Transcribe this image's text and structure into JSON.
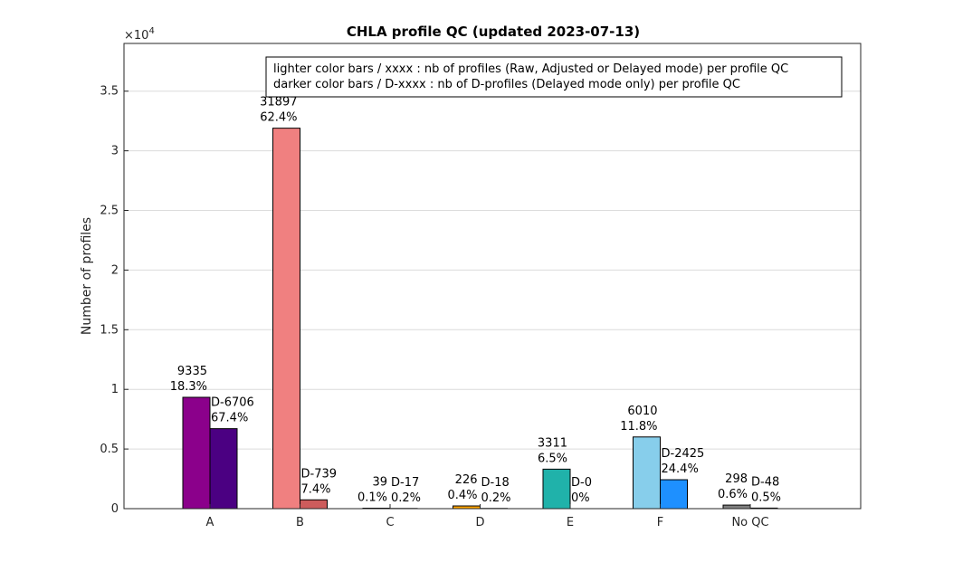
{
  "chart_data": {
    "type": "bar",
    "title": "CHLA profile QC (updated 2023-07-13)",
    "ylabel": "Number of profiles",
    "xlabel": "",
    "exponent_label": "×10",
    "exponent_power": "4",
    "ylim": [
      0,
      39000
    ],
    "yticks": [
      0,
      5000,
      10000,
      15000,
      20000,
      25000,
      30000,
      35000
    ],
    "ytick_labels": [
      "0",
      "0.5",
      "1",
      "1.5",
      "2",
      "2.5",
      "3",
      "3.5"
    ],
    "categories": [
      "A",
      "B",
      "C",
      "D",
      "E",
      "F",
      "No QC"
    ],
    "grid": "horizontal",
    "legend_placement": "top-right",
    "legend_lines": [
      "lighter color bars / xxxx : nb of profiles (Raw, Adjusted or Delayed mode) per profile QC",
      "darker color bars / D-xxxx : nb of D-profiles (Delayed mode only) per profile QC"
    ],
    "series": [
      {
        "values": [
          9335,
          31897,
          39,
          226,
          3311,
          6010,
          298
        ],
        "count_labels": [
          "9335",
          "31897",
          "39",
          "226",
          "3311",
          "6010",
          "298"
        ],
        "pct_labels": [
          "18.3%",
          "62.4%",
          "0.1%",
          "0.4%",
          "6.5%",
          "11.8%",
          "0.6%"
        ],
        "colors": [
          "#8b008b",
          "#f08080",
          "#ffa500",
          "#ffa500",
          "#20b2aa",
          "#87ceeb",
          "#808080"
        ]
      },
      {
        "values": [
          6706,
          739,
          17,
          18,
          0,
          2425,
          48
        ],
        "count_labels": [
          "D-6706",
          "D-739",
          "D-17",
          "D-18",
          "D-0",
          "D-2425",
          "D-48"
        ],
        "pct_labels": [
          "67.4%",
          "7.4%",
          "0.2%",
          "0.2%",
          "0%",
          "24.4%",
          "0.5%"
        ],
        "colors": [
          "#4b0082",
          "#cd5c5c",
          "#ff8c00",
          "#ff8c00",
          "#008b8b",
          "#1e90ff",
          "#404040"
        ]
      }
    ]
  }
}
